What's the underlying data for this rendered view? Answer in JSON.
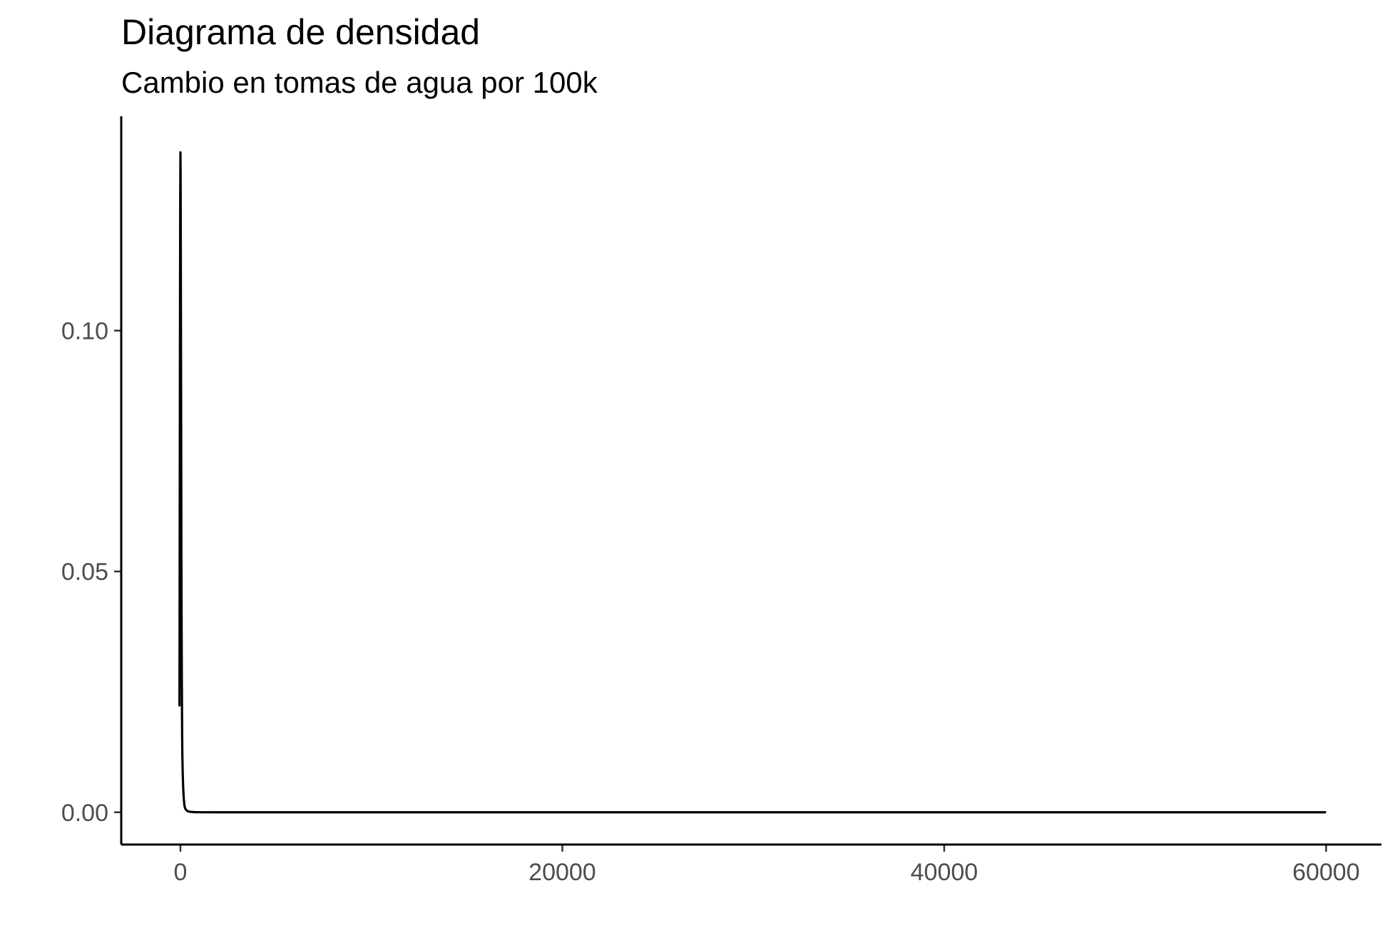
{
  "chart_data": {
    "type": "line",
    "title": "Diagrama de densidad",
    "subtitle": "Cambio en tomas de agua por 100k",
    "xlabel": "",
    "ylabel": "",
    "xlim": [
      -3100,
      62900
    ],
    "ylim": [
      -0.0067,
      0.1445
    ],
    "x_ticks": [
      0,
      20000,
      40000,
      60000
    ],
    "x_tick_labels": [
      "0",
      "20000",
      "40000",
      "60000"
    ],
    "y_ticks": [
      0.0,
      0.05,
      0.1
    ],
    "y_tick_labels": [
      "0.00",
      "0.05",
      "0.10"
    ],
    "grid": false,
    "legend": "none",
    "line_color": "#000000",
    "series": [
      {
        "x": [
          -50,
          -40,
          -30,
          -20,
          -10,
          0,
          10,
          20,
          30,
          40,
          50,
          60,
          70,
          80,
          90,
          100,
          120,
          140,
          160,
          180,
          200,
          220,
          250,
          300,
          350,
          400,
          500,
          700,
          1000,
          2000,
          5000,
          10000,
          20000,
          30000,
          40000,
          50000,
          60000
        ],
        "y": [
          0.022,
          0.05,
          0.08,
          0.108,
          0.128,
          0.137,
          0.132,
          0.115,
          0.095,
          0.075,
          0.054,
          0.04,
          0.03,
          0.022,
          0.016,
          0.012,
          0.008,
          0.0055,
          0.0038,
          0.0026,
          0.0018,
          0.0012,
          0.0008,
          0.0005,
          0.0003,
          0.0002,
          0.0001,
          4e-05,
          1e-05,
          0.0,
          0.0,
          0.0,
          0.0,
          0.0,
          0.0,
          0.0,
          0.0
        ]
      }
    ]
  }
}
